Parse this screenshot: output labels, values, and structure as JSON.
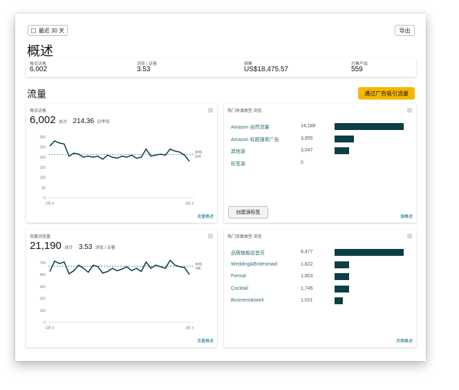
{
  "header": {
    "date_range_label": "最近 30 天",
    "export_label": "导出",
    "overview_title": "概述"
  },
  "overview_metrics": [
    {
      "label": "每日访客",
      "value": "6,002"
    },
    {
      "label": "浏览 / 访客",
      "value": "3.53"
    },
    {
      "label": "销售",
      "value": "US$18,475.57"
    },
    {
      "label": "已售产品",
      "value": "559"
    }
  ],
  "traffic": {
    "title": "流量",
    "ads_button_label": "通过广告吸引流量"
  },
  "visitors_card": {
    "title": "每日访客",
    "total": "6,002",
    "total_suffix": "总计",
    "avg": "214.36",
    "avg_suffix": "日平均",
    "link": "流量概述"
  },
  "pageviews_card": {
    "title": "页面浏览量",
    "total": "21,190",
    "total_suffix": "总计",
    "avg": "3.53",
    "avg_suffix": "浏览 / 访客",
    "link": "流量概述"
  },
  "sources_card": {
    "title": "热门来源类型 浏览",
    "create_tag_label": "创建源标签",
    "link": "源概述"
  },
  "pages_card": {
    "title": "热门页面类型 浏览",
    "link": "页面概述"
  },
  "chart_data": [
    {
      "type": "line",
      "title": "每日访客",
      "x_tick_labels": [
        "2月 4",
        "3月 3"
      ],
      "y_ticks": [
        0,
        50,
        100,
        150,
        200,
        250,
        300
      ],
      "ylim": [
        0,
        300
      ],
      "reference_line": {
        "label": "平均",
        "value": 214
      },
      "series": [
        {
          "values": [
            255,
            280,
            270,
            265,
            205,
            220,
            215,
            200,
            205,
            200,
            205,
            190,
            210,
            200,
            195,
            205,
            200,
            210,
            195,
            200,
            240,
            205,
            210,
            215,
            210,
            240,
            230,
            225,
            210,
            180
          ]
        }
      ]
    },
    {
      "type": "line",
      "title": "页面浏览量",
      "x_tick_labels": [
        "2月 4",
        "3月 3"
      ],
      "y_ticks": [
        0,
        150,
        300,
        450,
        600,
        750
      ],
      "ylim": [
        0,
        750
      ],
      "reference_line": {
        "label": "平均",
        "value": 706
      },
      "series": [
        {
          "values": [
            640,
            770,
            740,
            760,
            610,
            650,
            720,
            680,
            630,
            720,
            700,
            620,
            640,
            680,
            650,
            670,
            700,
            650,
            680,
            640,
            760,
            680,
            720,
            700,
            680,
            780,
            720,
            700,
            690,
            600
          ]
        }
      ]
    },
    {
      "type": "bar",
      "orientation": "horizontal",
      "title": "热门来源类型 浏览",
      "categories": [
        "Amazon 自然流量",
        "Amazon 标题搜索广告",
        "其他源",
        "标签源"
      ],
      "values": [
        14188,
        3955,
        3047,
        0
      ],
      "value_labels": [
        "14,188",
        "3,955",
        "3,047",
        "0"
      ]
    },
    {
      "type": "bar",
      "orientation": "horizontal",
      "title": "热门页面类型 浏览",
      "categories": [
        "品牌旗舰店首页",
        "Wedding&Bridesmaid",
        "Formal",
        "Cocktail",
        "Business&work"
      ],
      "values": [
        8477,
        1822,
        1803,
        1745,
        1021
      ],
      "value_labels": [
        "8,477",
        "1,822",
        "1,803",
        "1,745",
        "1,021"
      ]
    }
  ],
  "colors": {
    "line": "#0b3f45",
    "bar": "#0b3f45",
    "ads_button": "#f5b700",
    "link": "#0a6a83"
  }
}
